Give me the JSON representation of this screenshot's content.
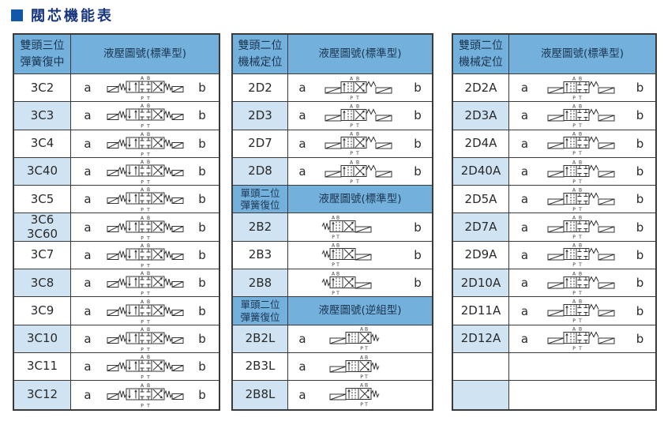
{
  "page": {
    "title": "閥芯機能表",
    "colors": {
      "header_bg": "#73b1dc",
      "row_alt_bg": "#cfe3f2",
      "border": "#3a3a3a",
      "title_text": "#17357d",
      "title_bullet": "#1258a8",
      "cell_text": "#2a2a2a",
      "header_text": "#1c3550"
    }
  },
  "ports": [
    "A",
    "B",
    "P",
    "T"
  ],
  "tables": [
    {
      "name": "spool-table-double-head-3pos-spring-centered",
      "rows": [
        {
          "kind": "head",
          "name": "雙頭三位\n彈簧復中",
          "diagram_label": "液壓圖號(標準型)"
        },
        {
          "kind": "item",
          "model": "3C2",
          "a": "a",
          "b": "b",
          "diagram": "3C"
        },
        {
          "kind": "item",
          "model": "3C3",
          "a": "a",
          "b": "b",
          "diagram": "3C"
        },
        {
          "kind": "item",
          "model": "3C4",
          "a": "a",
          "b": "b",
          "diagram": "3C"
        },
        {
          "kind": "item",
          "model": "3C40",
          "a": "a",
          "b": "b",
          "diagram": "3C"
        },
        {
          "kind": "item",
          "model": "3C5",
          "a": "a",
          "b": "b",
          "diagram": "3C"
        },
        {
          "kind": "item",
          "model": "3C6\n3C60",
          "a": "a",
          "b": "b",
          "diagram": "3C"
        },
        {
          "kind": "item",
          "model": "3C7",
          "a": "a",
          "b": "b",
          "diagram": "3C"
        },
        {
          "kind": "item",
          "model": "3C8",
          "a": "a",
          "b": "b",
          "diagram": "3C"
        },
        {
          "kind": "item",
          "model": "3C9",
          "a": "a",
          "b": "b",
          "diagram": "3C"
        },
        {
          "kind": "item",
          "model": "3C10",
          "a": "a",
          "b": "b",
          "diagram": "3C"
        },
        {
          "kind": "item",
          "model": "3C11",
          "a": "a",
          "b": "b",
          "diagram": "3C"
        },
        {
          "kind": "item",
          "model": "3C12",
          "a": "a",
          "b": "b",
          "diagram": "3C"
        }
      ]
    },
    {
      "name": "spool-table-2pos-detent-and-spring-return",
      "rows": [
        {
          "kind": "head",
          "name": "雙頭二位\n機械定位",
          "diagram_label": "液壓圖號(標準型)"
        },
        {
          "kind": "item",
          "model": "2D2",
          "a": "a",
          "b": "b",
          "diagram": "2D"
        },
        {
          "kind": "item",
          "model": "2D3",
          "a": "a",
          "b": "b",
          "diagram": "2D"
        },
        {
          "kind": "item",
          "model": "2D7",
          "a": "a",
          "b": "b",
          "diagram": "2D"
        },
        {
          "kind": "item",
          "model": "2D8",
          "a": "a",
          "b": "b",
          "diagram": "2D"
        },
        {
          "kind": "head",
          "name": "單頭二位\n彈簧復位",
          "diagram_label": "液壓圖號(標準型)"
        },
        {
          "kind": "item",
          "model": "2B2",
          "a": null,
          "b": "b",
          "diagram": "2B"
        },
        {
          "kind": "item",
          "model": "2B3",
          "a": null,
          "b": "b",
          "diagram": "2B"
        },
        {
          "kind": "item",
          "model": "2B8",
          "a": null,
          "b": "b",
          "diagram": "2B"
        },
        {
          "kind": "head",
          "name": "單頭二位\n彈簧復位",
          "diagram_label": "液壓圖號(逆組型)"
        },
        {
          "kind": "item",
          "model": "2B2L",
          "a": "a",
          "b": null,
          "diagram": "2BL"
        },
        {
          "kind": "item",
          "model": "2B3L",
          "a": "a",
          "b": null,
          "diagram": "2BL"
        },
        {
          "kind": "item",
          "model": "2B8L",
          "a": "a",
          "b": null,
          "diagram": "2BL"
        }
      ]
    },
    {
      "name": "spool-table-double-head-2pos-detent-A",
      "rows": [
        {
          "kind": "head",
          "name": "雙頭二位\n機械定位",
          "diagram_label": "液壓圖號(標準型)"
        },
        {
          "kind": "item",
          "model": "2D2A",
          "a": "a",
          "b": "b",
          "diagram": "2DA"
        },
        {
          "kind": "item",
          "model": "2D3A",
          "a": "a",
          "b": "b",
          "diagram": "2DA"
        },
        {
          "kind": "item",
          "model": "2D4A",
          "a": "a",
          "b": "b",
          "diagram": "2DA"
        },
        {
          "kind": "item",
          "model": "2D40A",
          "a": "a",
          "b": "b",
          "diagram": "2DA"
        },
        {
          "kind": "item",
          "model": "2D5A",
          "a": "a",
          "b": "b",
          "diagram": "2DA"
        },
        {
          "kind": "item",
          "model": "2D7A",
          "a": "a",
          "b": "b",
          "diagram": "2DA"
        },
        {
          "kind": "item",
          "model": "2D9A",
          "a": "a",
          "b": "b",
          "diagram": "2DA"
        },
        {
          "kind": "item",
          "model": "2D10A",
          "a": "a",
          "b": "b",
          "diagram": "2DA"
        },
        {
          "kind": "item",
          "model": "2D11A",
          "a": "a",
          "b": "b",
          "diagram": "2DA"
        },
        {
          "kind": "item",
          "model": "2D12A",
          "a": "a",
          "b": "b",
          "diagram": "2DA"
        },
        {
          "kind": "empty"
        },
        {
          "kind": "empty"
        }
      ]
    }
  ]
}
